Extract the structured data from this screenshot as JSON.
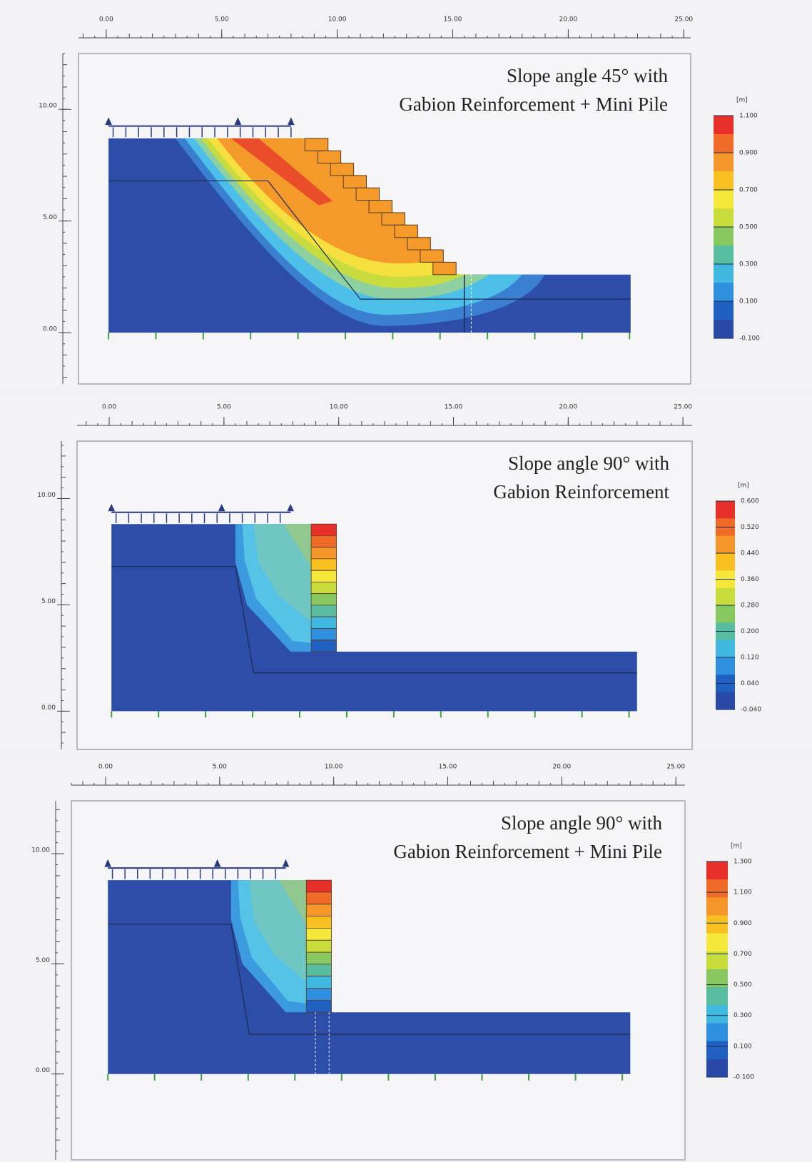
{
  "chart_data": [
    {
      "type": "contour",
      "title": [
        "Slope angle 45° with",
        "Gabion Reinforcement + Mini Pile"
      ],
      "xlim": [
        -1.2,
        25.3
      ],
      "ylim": [
        -2.3,
        12.5
      ],
      "xticks": [
        {
          "value": 0,
          "label": "0.00"
        },
        {
          "value": 5,
          "label": "5.00"
        },
        {
          "value": 10,
          "label": "10.00"
        },
        {
          "value": 15,
          "label": "15.00"
        },
        {
          "value": 20,
          "label": "20.00"
        },
        {
          "value": 25,
          "label": "25.00"
        }
      ],
      "yticks": [
        {
          "value": 0,
          "label": "0.00"
        },
        {
          "value": 5,
          "label": "5.00"
        },
        {
          "value": 10,
          "label": "10.00"
        }
      ],
      "colorbar_label": "[m]",
      "colorbar_ticks": [
        {
          "value": 1.1,
          "label": "1.100"
        },
        {
          "value": 0.9,
          "label": "0.900"
        },
        {
          "value": 0.7,
          "label": "0.700"
        },
        {
          "value": 0.5,
          "label": "0.500"
        },
        {
          "value": 0.3,
          "label": "0.300"
        },
        {
          "value": 0.1,
          "label": "0.100"
        },
        {
          "value": -0.1,
          "label": "-0.100"
        }
      ],
      "colorbar_colors": [
        "#e8302a",
        "#f06a28",
        "#f5962a",
        "#f8c020",
        "#f5e83a",
        "#c8dc3c",
        "#88c860",
        "#58bca0",
        "#40b8e0",
        "#3090e0",
        "#2060c0",
        "#2a4aa8"
      ]
    },
    {
      "type": "contour",
      "title": [
        "Slope angle 90° with",
        "Gabion Reinforcement"
      ],
      "xlim": [
        -1.4,
        25.4
      ],
      "ylim": [
        -1.8,
        12.7
      ],
      "xticks": [
        {
          "value": 0,
          "label": "0.00"
        },
        {
          "value": 5,
          "label": "5.00"
        },
        {
          "value": 10,
          "label": "10.00"
        },
        {
          "value": 15,
          "label": "15.00"
        },
        {
          "value": 20,
          "label": "20.00"
        },
        {
          "value": 25,
          "label": "25.00"
        }
      ],
      "yticks": [
        {
          "value": 0,
          "label": "0.00"
        },
        {
          "value": 5,
          "label": "5.00"
        },
        {
          "value": 10,
          "label": "10.00"
        }
      ],
      "colorbar_label": "[m]",
      "colorbar_ticks": [
        {
          "value": 0.6,
          "label": "0.600"
        },
        {
          "value": 0.52,
          "label": "0.520"
        },
        {
          "value": 0.44,
          "label": "0.440"
        },
        {
          "value": 0.36,
          "label": "0.360"
        },
        {
          "value": 0.28,
          "label": "0.280"
        },
        {
          "value": 0.2,
          "label": "0.200"
        },
        {
          "value": 0.12,
          "label": "0.120"
        },
        {
          "value": 0.04,
          "label": "0.040"
        },
        {
          "value": -0.04,
          "label": "-0.040"
        }
      ],
      "colorbar_colors": [
        "#e8302a",
        "#f06a28",
        "#f5962a",
        "#f8c020",
        "#f5e83a",
        "#c8dc3c",
        "#88c860",
        "#58bca0",
        "#40b8e0",
        "#3090e0",
        "#2060c0",
        "#2a4aa8"
      ]
    },
    {
      "type": "contour",
      "title": [
        "Slope angle 90° with",
        "Gabion Reinforcement + Mini Pile"
      ],
      "xlim": [
        -1.5,
        25.4
      ],
      "ylim": [
        -3.9,
        12.4
      ],
      "xticks": [
        {
          "value": 0,
          "label": "0.00"
        },
        {
          "value": 5,
          "label": "5.00"
        },
        {
          "value": 10,
          "label": "10.00"
        },
        {
          "value": 15,
          "label": "15.00"
        },
        {
          "value": 20,
          "label": "20.00"
        },
        {
          "value": 25,
          "label": "25.00"
        }
      ],
      "yticks": [
        {
          "value": 0,
          "label": "0.00"
        },
        {
          "value": 5,
          "label": "5.00"
        },
        {
          "value": 10,
          "label": "10.00"
        }
      ],
      "colorbar_label": "[m]",
      "colorbar_ticks": [
        {
          "value": 1.3,
          "label": "1.300"
        },
        {
          "value": 1.1,
          "label": "1.100"
        },
        {
          "value": 0.9,
          "label": "0.900"
        },
        {
          "value": 0.7,
          "label": "0.700"
        },
        {
          "value": 0.5,
          "label": "0.500"
        },
        {
          "value": 0.3,
          "label": "0.300"
        },
        {
          "value": 0.1,
          "label": "0.100"
        },
        {
          "value": -0.1,
          "label": "-0.100"
        }
      ],
      "colorbar_colors": [
        "#e8302a",
        "#f06a28",
        "#f5962a",
        "#f8c020",
        "#f5e83a",
        "#c8dc3c",
        "#88c860",
        "#58bca0",
        "#40b8e0",
        "#3090e0",
        "#2060c0",
        "#2a4aa8"
      ]
    }
  ]
}
